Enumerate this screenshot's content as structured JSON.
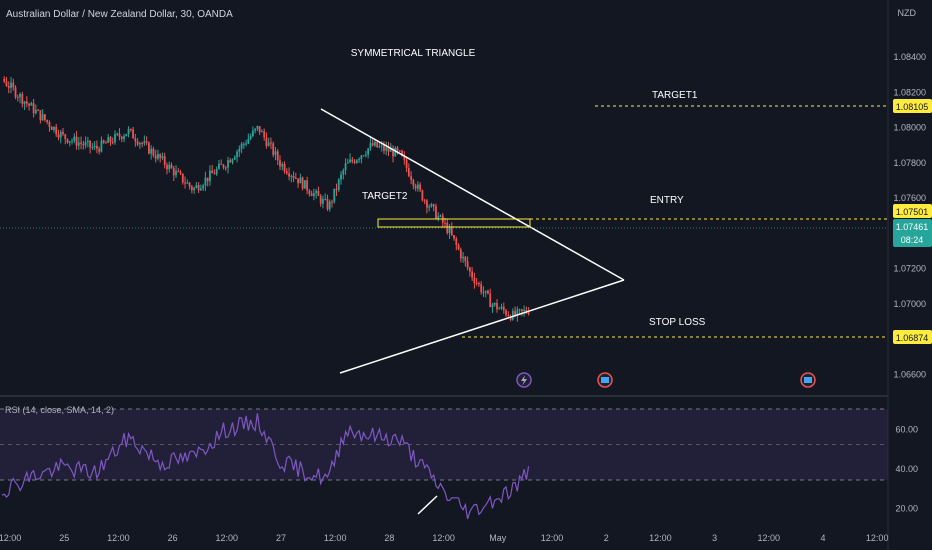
{
  "header": {
    "title": "Australian Dollar / New Zealand Dollar, 30, OANDA",
    "currency": "NZD"
  },
  "annotations": {
    "pattern": "SYMMETRICAL TRIANGLE",
    "target1": "TARGET1",
    "target2": "TARGET2",
    "entry": "ENTRY",
    "stop_loss": "STOP LOSS"
  },
  "price_badges": {
    "target1": "1.08105",
    "entry": "1.07501",
    "current": "1.07461",
    "countdown": "08:24",
    "stop_loss": "1.06874"
  },
  "rsi_panel": {
    "label": "RSI (14, close, SMA, 14, 2)"
  },
  "colors": {
    "background": "#131722",
    "up": "#26a69a",
    "down": "#ef5350",
    "rsi_line": "#7e57c2",
    "badge": "#ffeb3b",
    "current_badge": "#26a69a"
  },
  "chart_data": [
    {
      "type": "candlestick",
      "x_ticks": [
        "12:00",
        "25",
        "12:00",
        "26",
        "12:00",
        "27",
        "12:00",
        "28",
        "12:00",
        "May",
        "12:00",
        "2",
        "12:00",
        "3",
        "12:00",
        "4",
        "12:00"
      ],
      "ylim": [
        1.065,
        1.086
      ],
      "y_ticks": [
        1.084,
        1.082,
        1.08,
        1.078,
        1.076,
        1.074,
        1.072,
        1.07,
        1.068,
        1.066
      ],
      "approx_close_path": [
        {
          "x": 24.0,
          "price": 1.0858
        },
        {
          "x": 24.4,
          "price": 1.083
        },
        {
          "x": 24.7,
          "price": 1.0812
        },
        {
          "x": 25.0,
          "price": 1.0795
        },
        {
          "x": 25.3,
          "price": 1.0788
        },
        {
          "x": 25.6,
          "price": 1.0798
        },
        {
          "x": 25.9,
          "price": 1.0782
        },
        {
          "x": 26.2,
          "price": 1.0765
        },
        {
          "x": 26.5,
          "price": 1.078
        },
        {
          "x": 26.8,
          "price": 1.08
        },
        {
          "x": 27.0,
          "price": 1.078
        },
        {
          "x": 27.25,
          "price": 1.0766
        },
        {
          "x": 27.45,
          "price": 1.0755
        },
        {
          "x": 27.6,
          "price": 1.0778
        },
        {
          "x": 27.85,
          "price": 1.079
        },
        {
          "x": 28.1,
          "price": 1.0785
        },
        {
          "x": 28.3,
          "price": 1.0762
        },
        {
          "x": 28.55,
          "price": 1.0742
        },
        {
          "x": 28.75,
          "price": 1.0718
        },
        {
          "x": 28.95,
          "price": 1.07
        },
        {
          "x": 29.15,
          "price": 1.0693
        },
        {
          "x": 29.35,
          "price": 1.0698
        },
        {
          "x": 29.5,
          "price": 1.0712
        },
        {
          "x": 29.75,
          "price": 1.0722
        },
        {
          "x": 30.0,
          "price": 1.0735
        },
        {
          "x": 30.25,
          "price": 1.0746
        }
      ]
    },
    {
      "type": "line",
      "name": "RSI (14, close, SMA, 14, 2)",
      "y_ticks": [
        60.0,
        40.0,
        20.0
      ],
      "ylim": [
        10,
        75
      ],
      "levels": [
        70,
        50,
        30
      ],
      "approx_values": [
        {
          "x": 24.0,
          "y": 45
        },
        {
          "x": 24.4,
          "y": 28
        },
        {
          "x": 24.7,
          "y": 36
        },
        {
          "x": 25.0,
          "y": 41
        },
        {
          "x": 25.3,
          "y": 38
        },
        {
          "x": 25.6,
          "y": 56
        },
        {
          "x": 25.9,
          "y": 43
        },
        {
          "x": 26.2,
          "y": 46
        },
        {
          "x": 26.5,
          "y": 60
        },
        {
          "x": 26.8,
          "y": 64
        },
        {
          "x": 27.0,
          "y": 44
        },
        {
          "x": 27.25,
          "y": 38
        },
        {
          "x": 27.45,
          "y": 35
        },
        {
          "x": 27.6,
          "y": 60
        },
        {
          "x": 27.85,
          "y": 57
        },
        {
          "x": 28.1,
          "y": 55
        },
        {
          "x": 28.3,
          "y": 42
        },
        {
          "x": 28.55,
          "y": 26
        },
        {
          "x": 28.75,
          "y": 18
        },
        {
          "x": 28.95,
          "y": 24
        },
        {
          "x": 29.15,
          "y": 30
        },
        {
          "x": 29.35,
          "y": 42
        },
        {
          "x": 29.5,
          "y": 55
        },
        {
          "x": 29.75,
          "y": 60
        },
        {
          "x": 30.0,
          "y": 66
        },
        {
          "x": 30.25,
          "y": 68
        }
      ]
    }
  ]
}
